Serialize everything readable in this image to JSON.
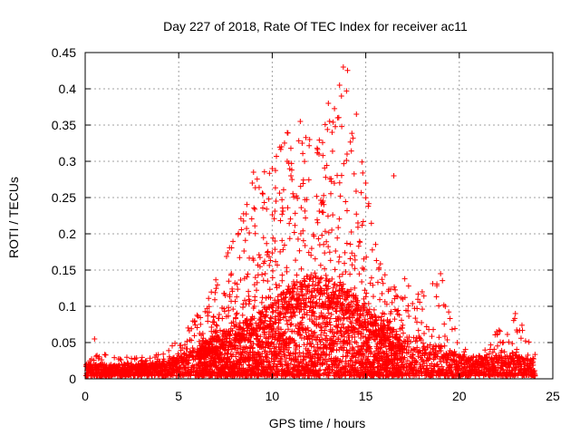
{
  "chart_data": {
    "type": "scatter",
    "title": "Day 227 of 2018, Rate Of TEC Index for receiver ac11",
    "xlabel": "GPS time / hours",
    "ylabel": "ROTI / TECUs",
    "xlim": [
      0,
      25
    ],
    "ylim": [
      0,
      0.45
    ],
    "xticks": [
      "0",
      "5",
      "10",
      "15",
      "20",
      "25"
    ],
    "yticks": [
      "0",
      "0.05",
      "0.1",
      "0.15",
      "0.2",
      "0.25",
      "0.3",
      "0.35",
      "0.4",
      "0.45"
    ],
    "grid": true,
    "marker": "+",
    "color": "#ff0000",
    "envelope": {
      "hours": [
        0,
        1,
        2,
        3,
        4,
        5,
        6,
        7,
        8,
        9,
        10,
        11,
        12,
        13,
        14,
        15,
        16,
        17,
        18,
        19,
        20,
        21,
        22,
        23,
        24
      ],
      "typical": [
        0.012,
        0.012,
        0.012,
        0.012,
        0.014,
        0.02,
        0.03,
        0.04,
        0.05,
        0.06,
        0.075,
        0.09,
        0.1,
        0.1,
        0.09,
        0.07,
        0.05,
        0.04,
        0.035,
        0.03,
        0.022,
        0.018,
        0.02,
        0.02,
        0.015
      ],
      "maximum": [
        0.03,
        0.035,
        0.03,
        0.03,
        0.035,
        0.06,
        0.09,
        0.14,
        0.2,
        0.28,
        0.3,
        0.35,
        0.33,
        0.36,
        0.43,
        0.27,
        0.16,
        0.14,
        0.12,
        0.145,
        0.05,
        0.035,
        0.065,
        0.09,
        0.05
      ]
    },
    "points": [
      {
        "x": 0.5,
        "y": 0.055
      },
      {
        "x": 9.0,
        "y": 0.285
      },
      {
        "x": 9.5,
        "y": 0.255
      },
      {
        "x": 10.0,
        "y": 0.29
      },
      {
        "x": 10.2,
        "y": 0.245
      },
      {
        "x": 10.5,
        "y": 0.32
      },
      {
        "x": 10.8,
        "y": 0.3
      },
      {
        "x": 11.0,
        "y": 0.28
      },
      {
        "x": 11.5,
        "y": 0.355
      },
      {
        "x": 11.6,
        "y": 0.325
      },
      {
        "x": 12.0,
        "y": 0.33
      },
      {
        "x": 12.5,
        "y": 0.31
      },
      {
        "x": 13.0,
        "y": 0.38
      },
      {
        "x": 13.2,
        "y": 0.34
      },
      {
        "x": 13.5,
        "y": 0.36
      },
      {
        "x": 13.6,
        "y": 0.405
      },
      {
        "x": 13.7,
        "y": 0.39
      },
      {
        "x": 13.8,
        "y": 0.43
      },
      {
        "x": 14.0,
        "y": 0.31
      },
      {
        "x": 14.5,
        "y": 0.365
      },
      {
        "x": 15.0,
        "y": 0.27
      },
      {
        "x": 16.5,
        "y": 0.28
      },
      {
        "x": 19.0,
        "y": 0.145
      },
      {
        "x": 22.0,
        "y": 0.065
      },
      {
        "x": 23.0,
        "y": 0.09
      }
    ]
  }
}
